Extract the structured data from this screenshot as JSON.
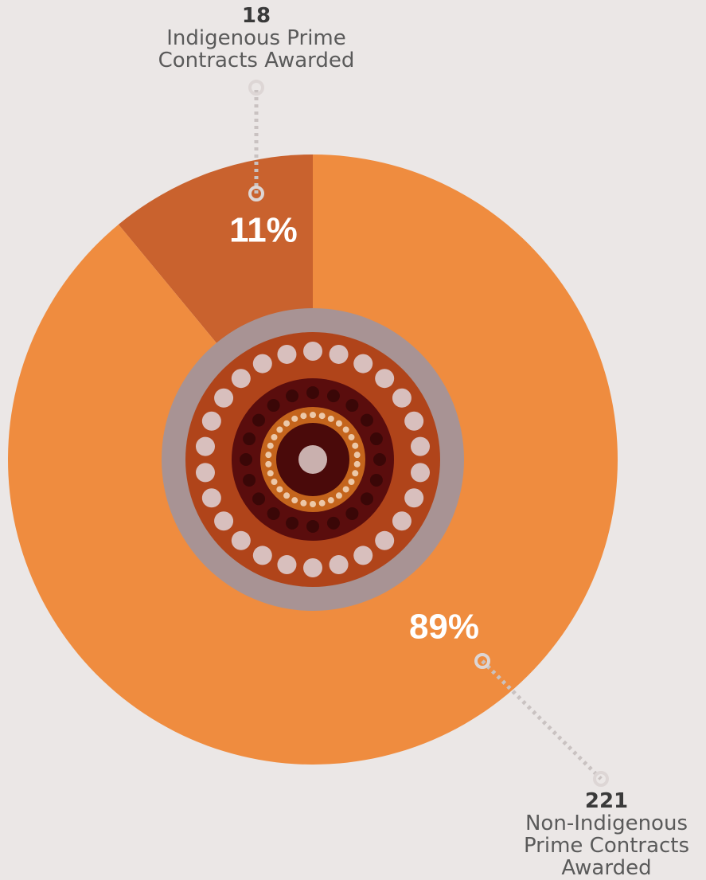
{
  "chart_data": {
    "type": "pie",
    "categories": [
      "Indigenous Prime Contracts Awarded",
      "Non-Indigenous Prime Contracts Awarded"
    ],
    "values": [
      11,
      89
    ],
    "value_labels": [
      "11%",
      "89%"
    ],
    "counts": [
      18,
      221
    ],
    "colors": [
      "#c9622e",
      "#ef8c3f"
    ]
  }
}
